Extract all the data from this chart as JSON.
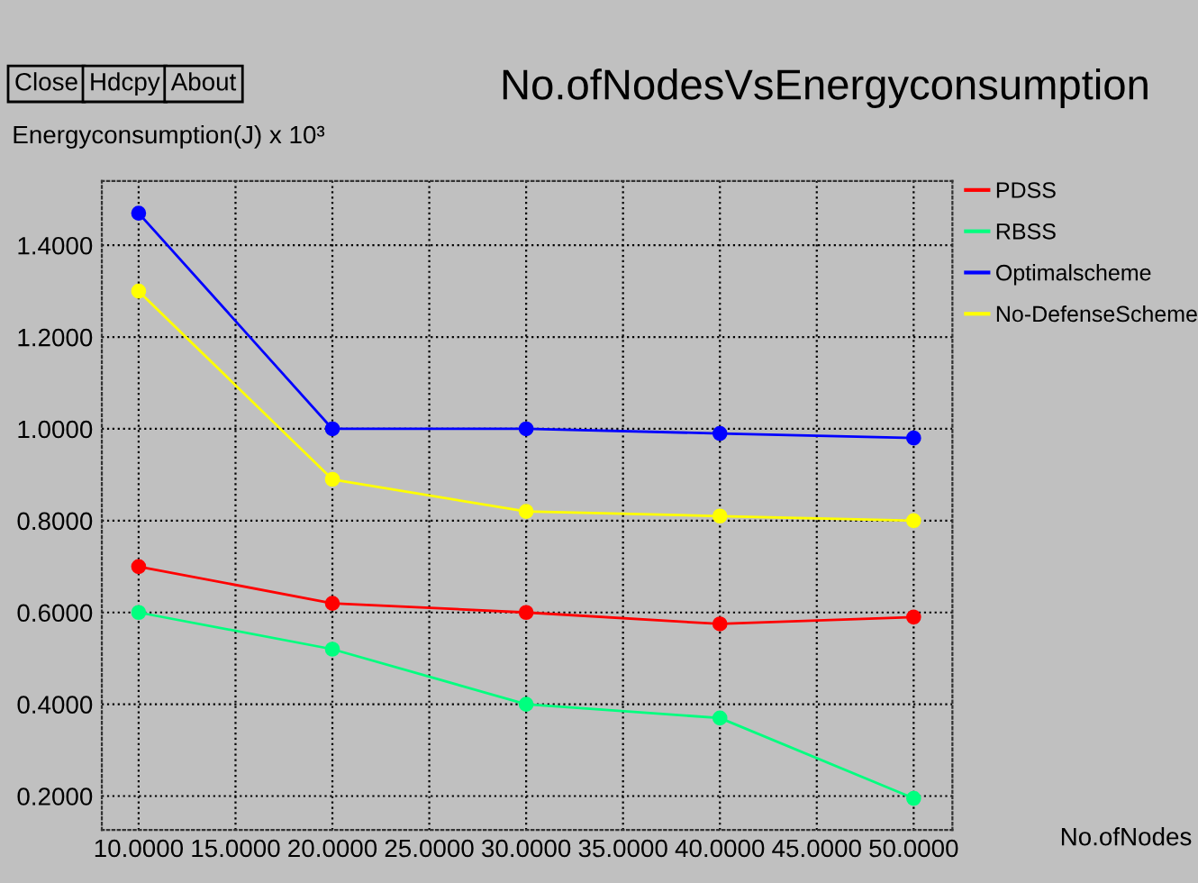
{
  "chart_data": {
    "type": "line",
    "title": "No.ofNodesVsEnergyconsumption",
    "xlabel": "No.ofNodes",
    "ylabel": "Energyconsumption(J) x 10³",
    "annotations": [
      "Close",
      "Hdcpy",
      "About"
    ],
    "x": [
      10,
      20,
      30,
      40,
      50
    ],
    "series": [
      {
        "name": "PDSS",
        "color": "#ff0000",
        "values": [
          0.7,
          0.62,
          0.6,
          0.575,
          0.59
        ]
      },
      {
        "name": "RBSS",
        "color": "#00ff7f",
        "values": [
          0.6,
          0.52,
          0.4,
          0.37,
          0.195
        ]
      },
      {
        "name": "Optimalscheme",
        "color": "#0000ff",
        "values": [
          1.47,
          1.0,
          1.0,
          0.99,
          0.98
        ]
      },
      {
        "name": "No-DefenseScheme",
        "color": "#ffff00",
        "values": [
          1.3,
          0.89,
          0.82,
          0.81,
          0.8
        ]
      }
    ],
    "xlim": [
      8.1,
      52
    ],
    "ylim": [
      0.126,
      1.54
    ],
    "xticks": [
      {
        "value": 10,
        "label": "10.0000"
      },
      {
        "value": 15,
        "label": "15.0000"
      },
      {
        "value": 20,
        "label": "20.0000"
      },
      {
        "value": 25,
        "label": "25.0000"
      },
      {
        "value": 30,
        "label": "30.0000"
      },
      {
        "value": 35,
        "label": "35.0000"
      },
      {
        "value": 40,
        "label": "40.0000"
      },
      {
        "value": 45,
        "label": "45.0000"
      },
      {
        "value": 50,
        "label": "50.0000"
      }
    ],
    "yticks": [
      {
        "value": 0.2,
        "label": "0.2000"
      },
      {
        "value": 0.4,
        "label": "0.4000"
      },
      {
        "value": 0.6,
        "label": "0.6000"
      },
      {
        "value": 0.8,
        "label": "0.8000"
      },
      {
        "value": 1.0,
        "label": "1.0000"
      },
      {
        "value": 1.2,
        "label": "1.2000"
      },
      {
        "value": 1.4,
        "label": "1.4000"
      }
    ],
    "grid": true,
    "legend": "right",
    "marker": "circle",
    "line_style": "solid"
  }
}
